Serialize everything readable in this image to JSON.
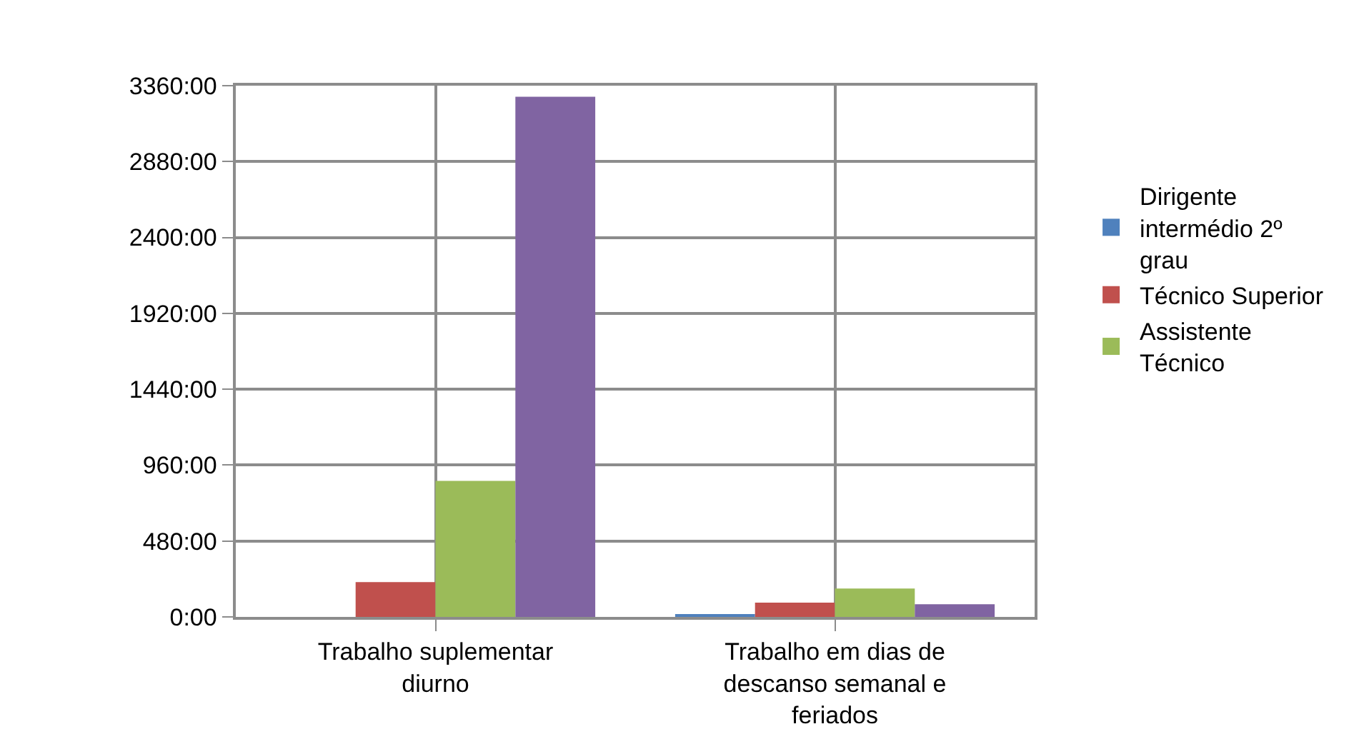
{
  "chart_data": {
    "type": "bar",
    "categories": [
      "Trabalho suplementar diurno",
      "Trabalho em dias de descanso semanal e feriados"
    ],
    "series": [
      {
        "name": "Dirigente intermédio 2º grau",
        "color": "#4f81bd",
        "values": [
          null,
          10
        ]
      },
      {
        "name": "Técnico Superior",
        "color": "#c0504d",
        "values": [
          220,
          90
        ]
      },
      {
        "name": "Assistente Técnico",
        "color": "#9bbb59",
        "values": [
          860,
          180
        ]
      },
      {
        "color": "#8064a2",
        "values": [
          3290,
          80
        ]
      }
    ],
    "ylim": [
      0,
      3360
    ],
    "yticks": [
      {
        "value": 0,
        "label": "0:00"
      },
      {
        "value": 480,
        "label": "480:00"
      },
      {
        "value": 960,
        "label": "960:00"
      },
      {
        "value": 1440,
        "label": "1440:00"
      },
      {
        "value": 1920,
        "label": "1920:00"
      },
      {
        "value": 2400,
        "label": "2400:00"
      },
      {
        "value": 2880,
        "label": "2880:00"
      },
      {
        "value": 3360,
        "label": "3360:00"
      }
    ],
    "grid": true,
    "legend": "right"
  }
}
